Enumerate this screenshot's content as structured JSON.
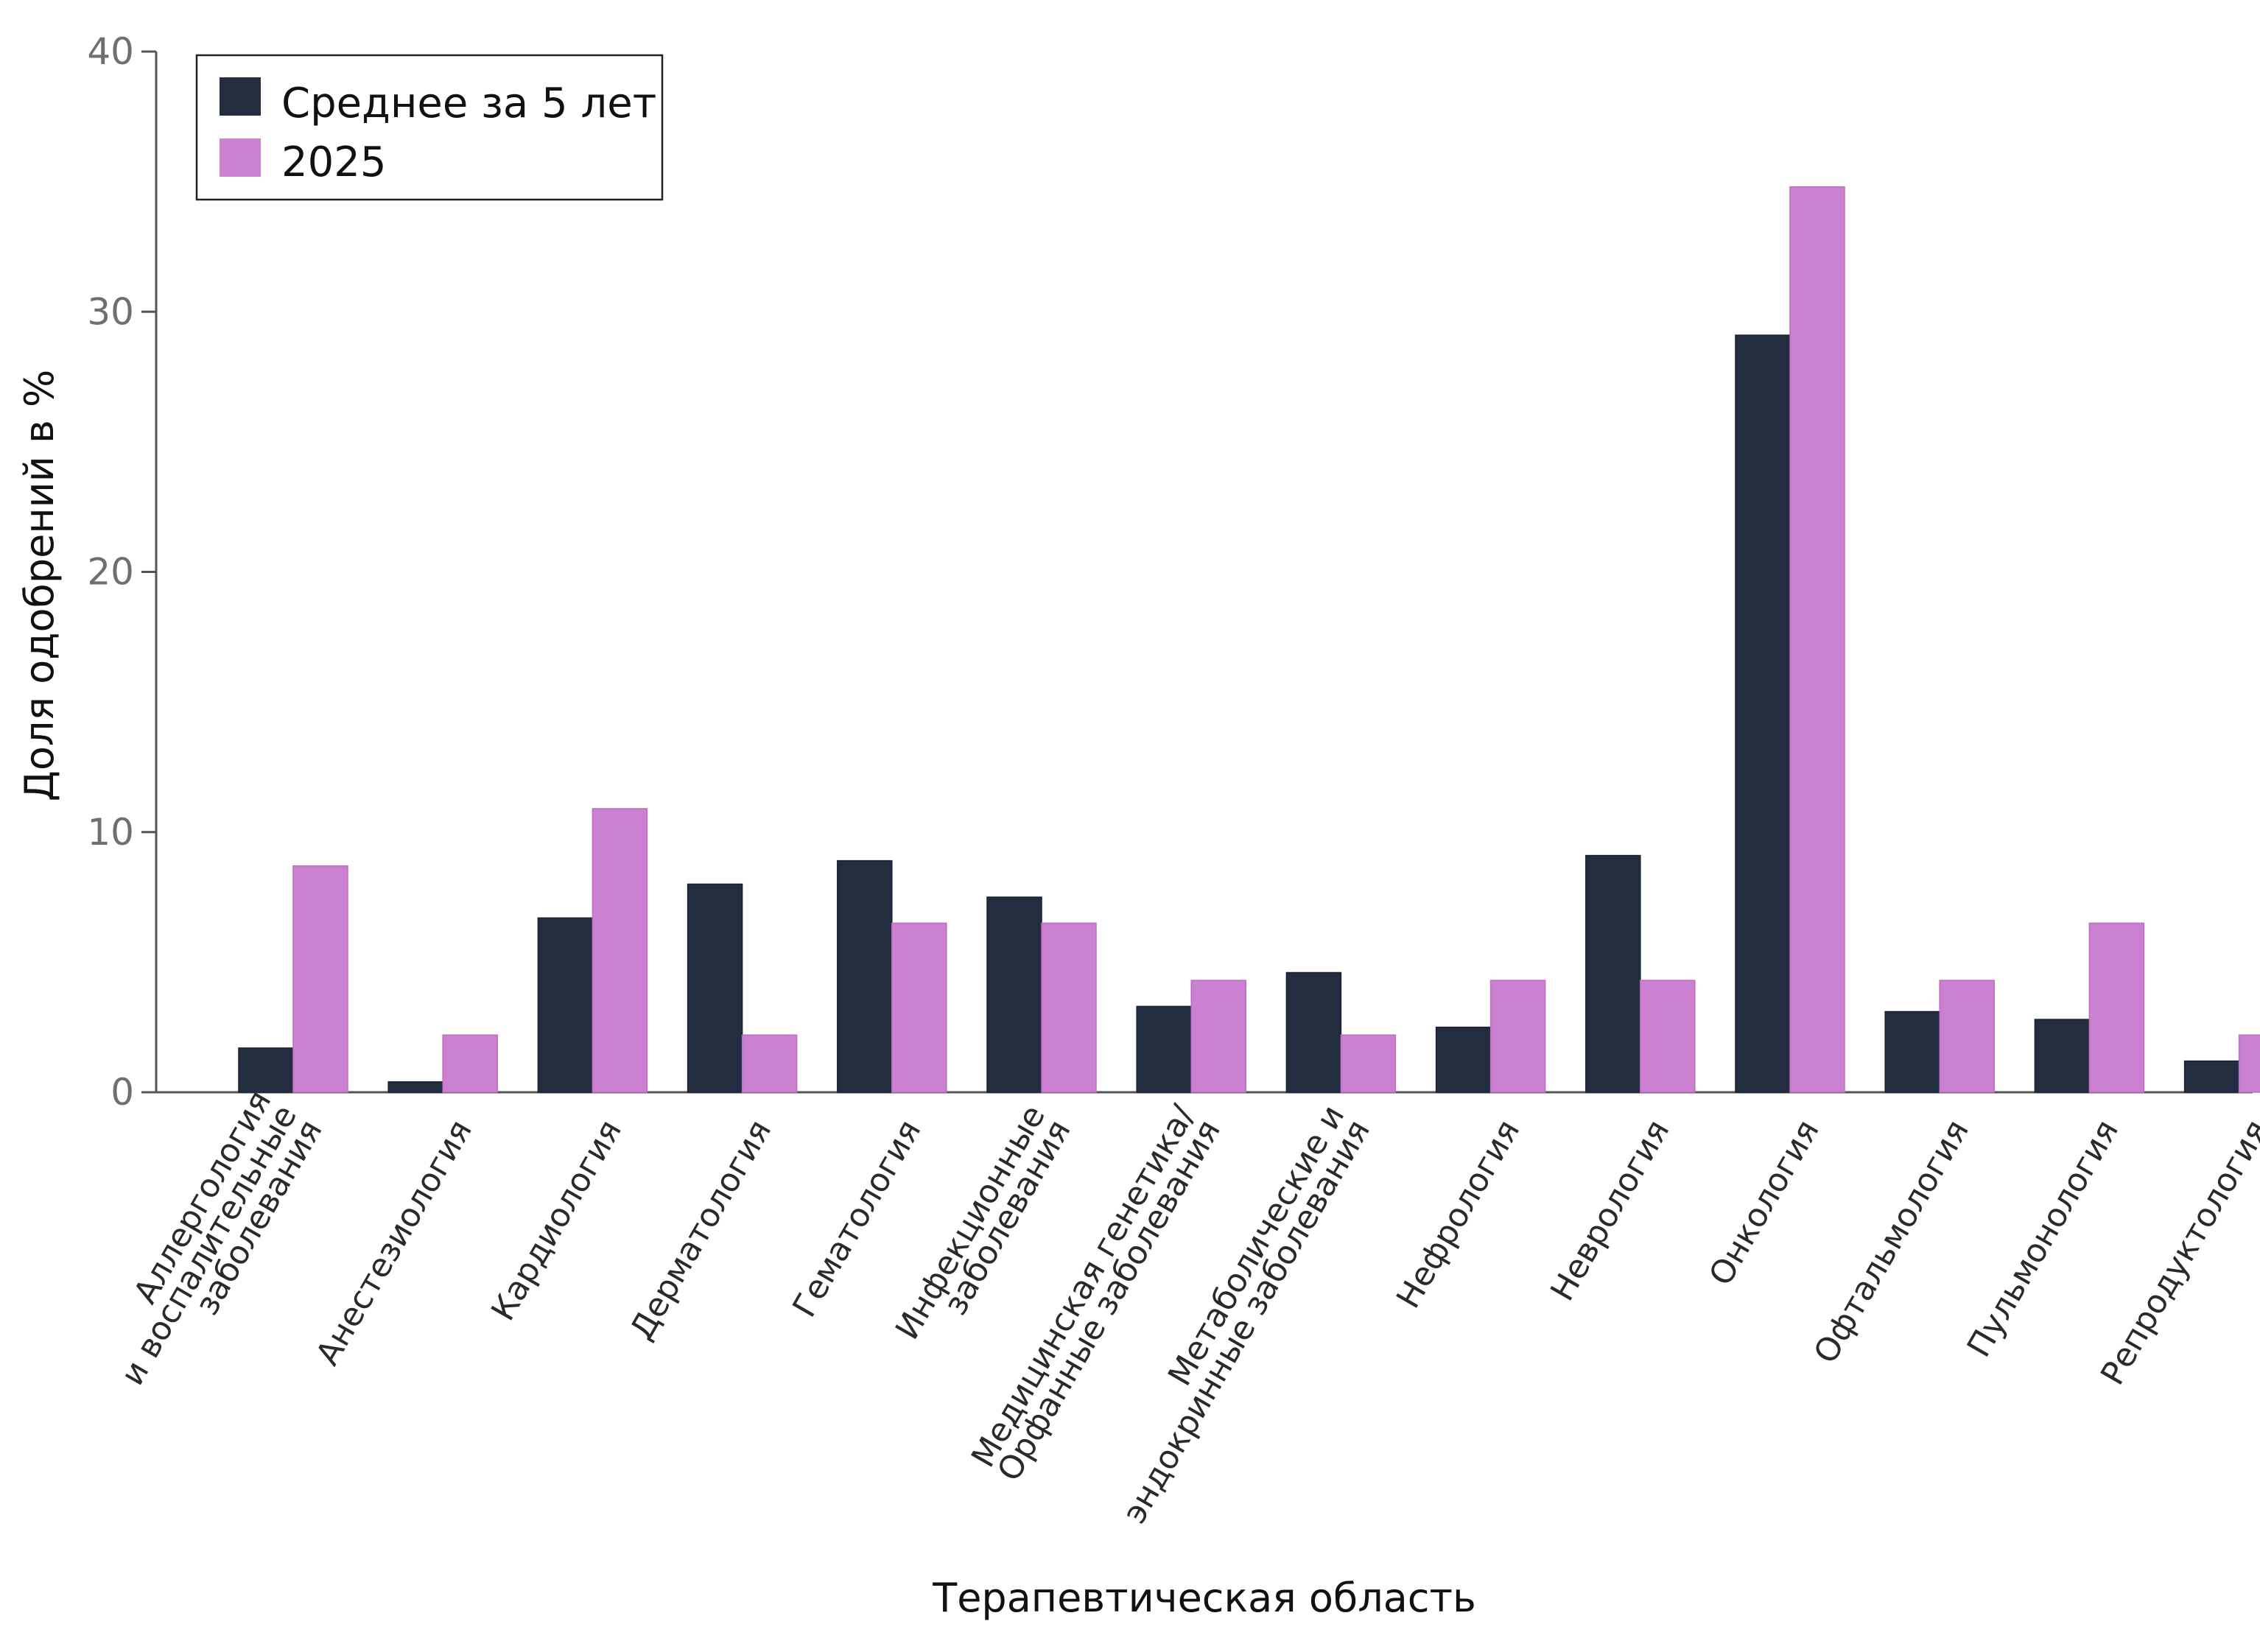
{
  "chart_data": {
    "type": "bar",
    "title": "",
    "xlabel": "Терапевтическая область",
    "ylabel": "Доля одобрений в %",
    "ylim": [
      0,
      40
    ],
    "yticks": [
      0,
      10,
      20,
      30,
      40
    ],
    "grid": false,
    "legend_position": "top-left",
    "categories": [
      [
        "Аллергология",
        "и воспалительные",
        "заболевания"
      ],
      [
        "Анестезиология"
      ],
      [
        "Кардиология"
      ],
      [
        "Дерматология"
      ],
      [
        "Гематология"
      ],
      [
        "Инфекционные",
        "заболевания"
      ],
      [
        "Медицинская генетика/",
        "Орфанные заболевания"
      ],
      [
        "Метаболические и",
        "эндокринные заболевания"
      ],
      [
        "Нефрология"
      ],
      [
        "Неврология"
      ],
      [
        "Онкология"
      ],
      [
        "Офтальмология"
      ],
      [
        "Пульмонология"
      ],
      [
        "Репродуктология"
      ]
    ],
    "series": [
      {
        "name": "Среднее за 5 лет",
        "color": "#222d40",
        "values": [
          1.7,
          0.4,
          6.7,
          8.0,
          8.9,
          7.5,
          3.3,
          4.6,
          2.5,
          9.1,
          29.1,
          3.1,
          2.8,
          1.2
        ]
      },
      {
        "name": "2025",
        "color": "#cc80d1",
        "values": [
          8.7,
          2.2,
          10.9,
          2.2,
          6.5,
          6.5,
          4.3,
          2.2,
          4.3,
          4.3,
          34.8,
          4.3,
          6.5,
          2.2
        ]
      }
    ]
  }
}
